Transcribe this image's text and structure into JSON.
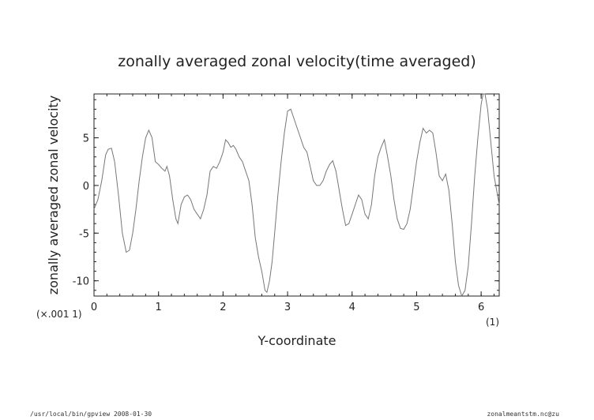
{
  "chart_data": {
    "type": "line",
    "title": "zonally averaged zonal velocity(time averaged)",
    "xlabel": "Y-coordinate",
    "ylabel": "zonally averaged zonal velocity",
    "x_units": "(1)",
    "y_units": "(×.001 1)",
    "xlim": [
      0,
      6.28
    ],
    "ylim": [
      -11.6,
      9.6
    ],
    "x_ticks": [
      0,
      1,
      2,
      3,
      4,
      5,
      6
    ],
    "y_ticks": [
      5,
      0,
      -5,
      -10
    ],
    "grid": false,
    "line_color": "#777777",
    "series": [
      {
        "x": [
          0.0,
          0.06,
          0.12,
          0.18,
          0.22,
          0.27,
          0.32,
          0.38,
          0.44,
          0.5,
          0.55,
          0.6,
          0.65,
          0.7,
          0.75,
          0.8,
          0.85,
          0.9,
          0.95,
          1.0,
          1.05,
          1.1,
          1.13,
          1.17,
          1.22,
          1.27,
          1.3,
          1.35,
          1.4,
          1.45,
          1.5,
          1.55,
          1.6,
          1.65,
          1.7,
          1.75,
          1.8,
          1.85,
          1.9,
          1.95,
          2.0,
          2.04,
          2.08,
          2.12,
          2.16,
          2.2,
          2.25,
          2.3,
          2.35,
          2.4,
          2.45,
          2.5,
          2.55,
          2.6,
          2.65,
          2.68,
          2.72,
          2.76,
          2.8,
          2.85,
          2.9,
          2.95,
          3.0,
          3.05,
          3.1,
          3.15,
          3.2,
          3.25,
          3.3,
          3.35,
          3.4,
          3.45,
          3.5,
          3.55,
          3.6,
          3.65,
          3.7,
          3.75,
          3.8,
          3.85,
          3.9,
          3.95,
          4.0,
          4.05,
          4.1,
          4.15,
          4.2,
          4.25,
          4.3,
          4.35,
          4.4,
          4.45,
          4.5,
          4.55,
          4.6,
          4.65,
          4.7,
          4.75,
          4.8,
          4.85,
          4.9,
          4.95,
          5.0,
          5.05,
          5.1,
          5.15,
          5.2,
          5.25,
          5.3,
          5.35,
          5.4,
          5.45,
          5.5,
          5.55,
          5.6,
          5.65,
          5.7,
          5.75,
          5.8,
          5.85,
          5.9,
          5.95,
          6.0,
          6.03,
          6.06,
          6.1,
          6.15,
          6.2,
          6.28
        ],
        "values": [
          -2.5,
          -1.5,
          0.5,
          3.2,
          3.8,
          3.9,
          2.5,
          -1.0,
          -5.0,
          -7.0,
          -6.8,
          -5.0,
          -2.5,
          0.5,
          3.0,
          5.0,
          5.8,
          5.0,
          2.5,
          2.2,
          1.8,
          1.5,
          2.0,
          1.0,
          -1.5,
          -3.5,
          -4.0,
          -2.0,
          -1.2,
          -1.0,
          -1.5,
          -2.5,
          -3.0,
          -3.5,
          -2.5,
          -1.0,
          1.5,
          2.0,
          1.8,
          2.5,
          3.5,
          4.8,
          4.5,
          4.0,
          4.2,
          3.8,
          3.0,
          2.5,
          1.5,
          0.5,
          -2.0,
          -5.5,
          -7.5,
          -9.0,
          -11.0,
          -11.2,
          -10.0,
          -8.0,
          -5.0,
          -1.0,
          2.5,
          5.5,
          7.8,
          8.0,
          7.0,
          6.0,
          5.0,
          4.0,
          3.5,
          2.0,
          0.5,
          0.0,
          0.0,
          0.5,
          1.5,
          2.2,
          2.6,
          1.5,
          -0.5,
          -2.5,
          -4.2,
          -4.0,
          -3.0,
          -2.0,
          -1.0,
          -1.5,
          -3.0,
          -3.5,
          -2.0,
          1.0,
          3.0,
          4.0,
          4.8,
          3.0,
          1.0,
          -1.5,
          -3.5,
          -4.5,
          -4.6,
          -4.0,
          -2.5,
          0.0,
          2.5,
          4.5,
          6.0,
          5.5,
          5.8,
          5.5,
          3.5,
          1.0,
          0.5,
          1.2,
          -0.5,
          -4.0,
          -8.0,
          -10.5,
          -11.6,
          -11.0,
          -8.5,
          -4.0,
          1.0,
          5.0,
          8.5,
          9.6,
          9.6,
          8.0,
          4.5,
          1.0,
          -2.0
        ]
      }
    ]
  },
  "footer": {
    "left": "/usr/local/bin/gpview   2008-01-30",
    "right": "zonalmeantstm.nc@zu"
  }
}
